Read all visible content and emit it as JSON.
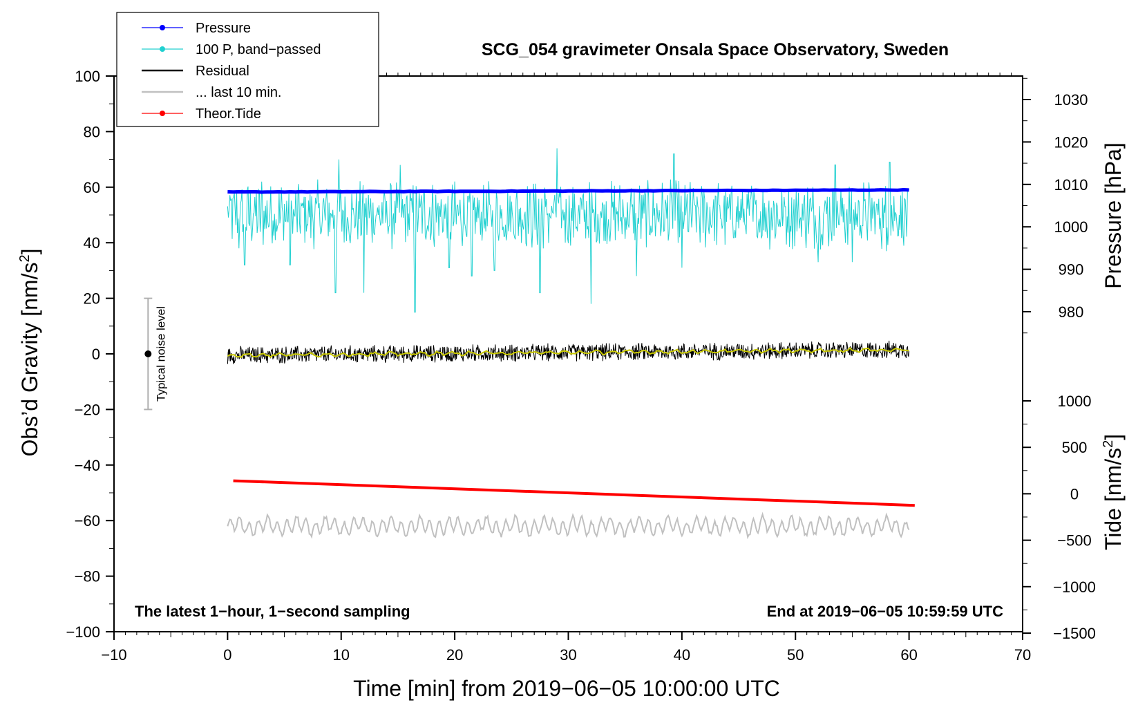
{
  "chart_data": {
    "type": "line",
    "title": "SCG_054 gravimeter Onsala Space Observatory, Sweden",
    "xlabel": "Time [min] from 2019−06−05 10:00:00 UTC",
    "ylabel": "Obs’d Gravity [nm/s",
    "ylabel_sup": "2",
    "ylabel_close": "]",
    "y2label_pressure": "Pressure [hPa]",
    "y2label_tide": "Tide [nm/s",
    "y2label_tide_sup": "2",
    "y2label_tide_close": "]",
    "xlim": [
      -10,
      70
    ],
    "ylim": [
      -100,
      100
    ],
    "pressure_ylim": [
      970,
      1035
    ],
    "tide_ylim": [
      -1500,
      1000
    ],
    "x_ticks": [
      "−10",
      "0",
      "10",
      "20",
      "30",
      "40",
      "50",
      "60",
      "70"
    ],
    "y_ticks": [
      "100",
      "80",
      "60",
      "40",
      "20",
      "0",
      "−20",
      "−40",
      "−60",
      "−80",
      "−100"
    ],
    "pressure_ticks": [
      "1030",
      "1020",
      "1010",
      "1000",
      "990",
      "980"
    ],
    "tide_ticks": [
      "1000",
      "500",
      "0",
      "−500",
      "−1000",
      "−1500"
    ],
    "legend": {
      "position": "top-left",
      "entries": [
        {
          "label": "Pressure",
          "color": "#0000ff",
          "marker": true
        },
        {
          "label": "100 P, band−passed",
          "color": "#20d0d0",
          "marker": true
        },
        {
          "label": "Residual",
          "color": "#000000",
          "marker": false
        },
        {
          "label": "... last 10 min.",
          "color": "#c0c0c0",
          "marker": false
        },
        {
          "label": "Theor.Tide",
          "color": "#ff0000",
          "marker": true
        }
      ]
    },
    "annotations": {
      "bottom_left": "The latest 1−hour, 1−second sampling",
      "bottom_right": "End at 2019−06−05 10:59:59 UTC",
      "noise_label": "Typical noise level"
    },
    "noise_bar": {
      "x": -7,
      "center": 0,
      "low": -20,
      "high": 20
    },
    "series": [
      {
        "name": "Pressure",
        "color": "#0000ff",
        "axis": "pressure",
        "x_range": [
          0,
          60
        ],
        "start_value": 1008.2,
        "end_value": 1008.7,
        "unit": "hPa"
      },
      {
        "name": "100 P, band−passed",
        "color": "#20d0d0",
        "axis": "gravity",
        "x_range": [
          0,
          60
        ],
        "mean": 50,
        "amplitude": 10,
        "spikes": [
          [
            1,
            38
          ],
          [
            1.5,
            32
          ],
          [
            5.5,
            32
          ],
          [
            9.5,
            22
          ],
          [
            12,
            22
          ],
          [
            16.5,
            15
          ],
          [
            19.5,
            31
          ],
          [
            21.5,
            28
          ],
          [
            23.5,
            30
          ],
          [
            27.5,
            22
          ],
          [
            29,
            25
          ],
          [
            32,
            18
          ],
          [
            36,
            28
          ],
          [
            40,
            31
          ],
          [
            52,
            33
          ],
          [
            55,
            33
          ],
          [
            58,
            37
          ],
          [
            3,
            62
          ],
          [
            9.8,
            70
          ],
          [
            15.2,
            68
          ],
          [
            29,
            74
          ],
          [
            39.3,
            72
          ],
          [
            53.5,
            68
          ],
          [
            58.3,
            69
          ]
        ]
      },
      {
        "name": "Residual",
        "color": "#000000",
        "axis": "gravity",
        "x_range": [
          0,
          60
        ],
        "start_value": -0.5,
        "end_value": 1.5,
        "amplitude": 3
      },
      {
        "name": "Residual smoothed",
        "color": "#c8c800",
        "axis": "gravity",
        "x_range": [
          0,
          60
        ],
        "start_value": -0.5,
        "end_value": 1.5,
        "amplitude": 0.8
      },
      {
        "name": "... last 10 min.",
        "color": "#c0c0c0",
        "axis": "gravity",
        "x_range": [
          0,
          60
        ],
        "mean": -62,
        "amplitude": 3.5
      },
      {
        "name": "Theor.Tide",
        "color": "#ff0000",
        "axis": "tide",
        "x_range": [
          0.5,
          60.5
        ],
        "start_value": 140,
        "end_value": -125,
        "unit": "nm/s2"
      }
    ]
  }
}
